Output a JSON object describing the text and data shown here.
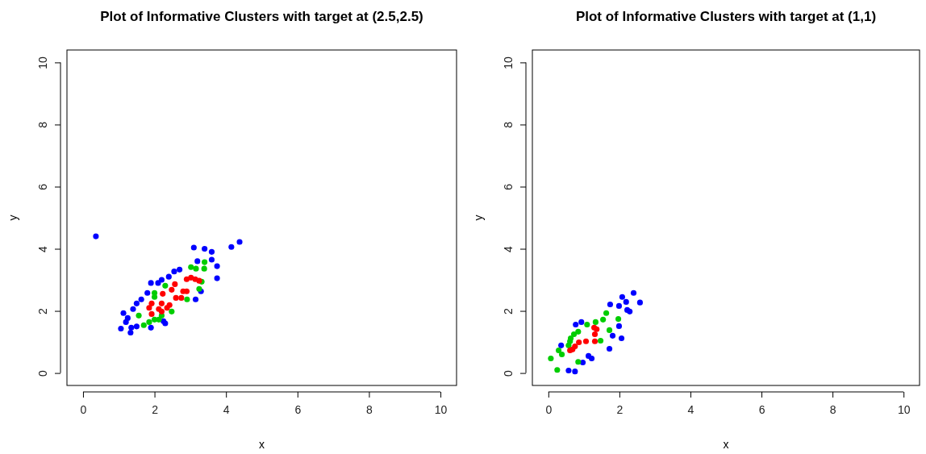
{
  "chart_data": [
    {
      "type": "scatter",
      "title": "Plot of Informative Clusters with target at (2.5,2.5)",
      "xlabel": "x",
      "ylabel": "y",
      "xlim": [
        -0.45,
        10.45
      ],
      "ylim": [
        -0.4,
        10.4
      ],
      "xticks": [
        0,
        2,
        4,
        6,
        8,
        10
      ],
      "yticks": [
        0,
        2,
        4,
        6,
        8,
        10
      ],
      "marker": "circle",
      "series": [
        {
          "color": "#0000ff",
          "x": [
            0.36,
            3.1,
            3.4,
            3.6,
            3.6,
            4.15,
            4.38,
            3.2,
            3.75,
            3.75,
            2.7,
            2.55,
            2.4,
            2.2,
            2.1,
            1.9,
            3.3,
            3.15,
            1.8,
            1.63,
            1.5,
            1.4,
            1.13,
            1.25,
            1.2,
            1.06,
            1.35,
            1.5,
            1.33,
            1.9,
            2.3,
            2.25
          ],
          "values": [
            4.4,
            4.04,
            4.0,
            3.9,
            3.65,
            4.06,
            4.22,
            3.6,
            3.44,
            3.05,
            3.33,
            3.27,
            3.1,
            3.0,
            2.9,
            2.9,
            2.63,
            2.37,
            2.58,
            2.37,
            2.24,
            2.06,
            1.93,
            1.77,
            1.64,
            1.43,
            1.46,
            1.5,
            1.3,
            1.46,
            1.6,
            1.67
          ]
        },
        {
          "color": "#00cd00",
          "x": [
            3.02,
            3.16,
            3.4,
            3.39,
            3.32,
            3.25,
            2.91,
            2.3,
            2.0,
            2.0,
            1.56,
            2.2,
            2.12,
            2.0,
            2.48,
            1.7,
            1.85
          ],
          "values": [
            3.41,
            3.36,
            3.57,
            3.36,
            2.94,
            2.71,
            2.37,
            2.81,
            2.58,
            2.45,
            1.85,
            1.85,
            1.72,
            1.72,
            1.98,
            1.54,
            1.64
          ]
        },
        {
          "color": "#ff0000",
          "x": [
            3.02,
            2.9,
            3.14,
            3.25,
            2.57,
            2.48,
            2.8,
            2.9,
            2.6,
            2.75,
            2.23,
            2.2,
            1.92,
            1.85,
            2.42,
            2.35,
            2.12,
            1.92,
            2.2
          ],
          "values": [
            3.07,
            3.02,
            3.02,
            2.97,
            2.86,
            2.68,
            2.63,
            2.63,
            2.42,
            2.42,
            2.55,
            2.24,
            2.24,
            2.1,
            2.19,
            2.1,
            2.06,
            1.9,
            1.98
          ]
        }
      ]
    },
    {
      "type": "scatter",
      "title": "Plot of Informative Clusters with target at (1,1)",
      "xlabel": "x",
      "ylabel": "y",
      "xlim": [
        -0.45,
        10.45
      ],
      "ylim": [
        -0.4,
        10.4
      ],
      "xticks": [
        0,
        2,
        4,
        6,
        8,
        10
      ],
      "yticks": [
        0,
        2,
        4,
        6,
        8,
        10
      ],
      "marker": "circle",
      "series": [
        {
          "color": "#0000ff",
          "x": [
            2.4,
            2.58,
            2.08,
            2.19,
            1.99,
            1.74,
            2.22,
            2.29,
            1.99,
            2.06,
            1.81,
            1.72,
            0.93,
            0.77,
            0.36,
            1.13,
            1.22,
            0.97,
            0.57,
            0.75
          ],
          "values": [
            2.58,
            2.27,
            2.45,
            2.29,
            2.16,
            2.21,
            2.03,
            1.98,
            1.51,
            1.12,
            1.2,
            0.78,
            1.64,
            1.56,
            0.89,
            0.55,
            0.47,
            0.34,
            0.08,
            0.05
          ]
        },
        {
          "color": "#00cd00",
          "x": [
            1.63,
            1.54,
            1.97,
            1.33,
            1.09,
            0.84,
            0.72,
            0.63,
            0.61,
            0.57,
            1.72,
            1.47,
            0.29,
            0.38,
            0.07,
            0.84,
            0.25
          ],
          "values": [
            1.93,
            1.72,
            1.74,
            1.64,
            1.56,
            1.33,
            1.25,
            1.12,
            1.02,
            0.89,
            1.38,
            1.04,
            0.73,
            0.6,
            0.47,
            0.36,
            0.1
          ]
        },
        {
          "color": "#ff0000",
          "x": [
            1.29,
            1.36,
            1.31,
            1.31,
            1.06,
            0.86,
            0.75,
            0.68,
            0.61
          ],
          "values": [
            1.46,
            1.41,
            1.25,
            1.02,
            1.02,
            0.99,
            0.86,
            0.76,
            0.73
          ]
        }
      ]
    }
  ]
}
